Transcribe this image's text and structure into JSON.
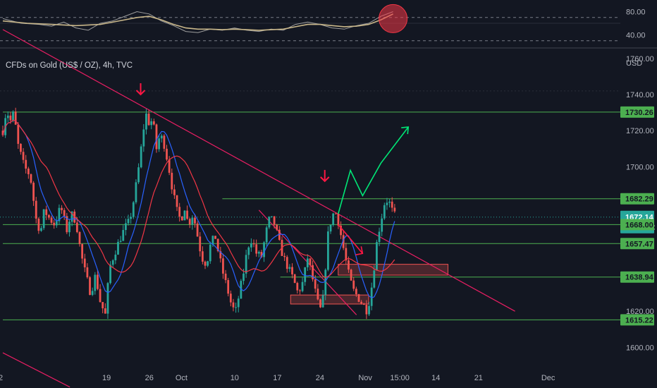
{
  "colors": {
    "background": "#131722",
    "up_candle": "#26a69a",
    "down_candle": "#ef5350",
    "blue_ma": "#2962ff",
    "red_ma": "#f23645",
    "support_line": "#4caf50",
    "trendline": "#e91e63",
    "forecast_up": "#00e676",
    "forecast_down": "#ff1744",
    "rsi_line": "#c9b78a",
    "rsi_alt": "#9e9e9e",
    "arrow": "#ff1744",
    "grid": "#2a2e39"
  },
  "chart_data": [
    {
      "type": "line",
      "title": "CFDs on Gold (US$ / OZ), 4h, TVC",
      "series_name": "CFDs on Gold (US$ / OZ), 4h, TVC",
      "price_unit": "USD",
      "ylim": [
        1590,
        1765
      ],
      "y_ticks": [
        1600.0,
        1620.0,
        1640.0,
        1660.0,
        1680.0,
        1700.0,
        1720.0,
        1740.0,
        1760.0
      ],
      "y_tick_labels": [
        "1600.00",
        "1620.00",
        "",
        "",
        "",
        "1700.00",
        "1720.00",
        "1740.00",
        "1760.00"
      ],
      "x_ticks": [
        {
          "label": "2",
          "pos": 0
        },
        {
          "label": "19",
          "pos": 17
        },
        {
          "label": "26",
          "pos": 24
        },
        {
          "label": "Oct",
          "pos": 29
        },
        {
          "label": "10",
          "pos": 38
        },
        {
          "label": "17",
          "pos": 45
        },
        {
          "label": "24",
          "pos": 52
        },
        {
          "label": "Nov",
          "pos": 59
        },
        {
          "label": "15:00",
          "pos": 64.2
        },
        {
          "label": "14",
          "pos": 71
        },
        {
          "label": "21",
          "pos": 78
        },
        {
          "label": "Dec",
          "pos": 89
        }
      ],
      "price_path": [
        [
          0,
          1720
        ],
        [
          0.6,
          1732
        ],
        [
          1.2,
          1725
        ],
        [
          1.8,
          1730
        ],
        [
          2.5,
          1712
        ],
        [
          3.5,
          1700
        ],
        [
          4.5,
          1695
        ],
        [
          5.5,
          1670
        ],
        [
          6.2,
          1664
        ],
        [
          6.8,
          1676
        ],
        [
          7.5,
          1672
        ],
        [
          8.5,
          1668
        ],
        [
          9.5,
          1678
        ],
        [
          10.5,
          1665
        ],
        [
          11.2,
          1674
        ],
        [
          12.0,
          1670
        ],
        [
          12.8,
          1652
        ],
        [
          13.6,
          1640
        ],
        [
          14.4,
          1630
        ],
        [
          15.2,
          1640
        ],
        [
          16.0,
          1625
        ],
        [
          16.8,
          1618
        ],
        [
          17.5,
          1644
        ],
        [
          18.3,
          1652
        ],
        [
          19.2,
          1660
        ],
        [
          20.0,
          1666
        ],
        [
          20.8,
          1670
        ],
        [
          21.6,
          1684
        ],
        [
          22.3,
          1700
        ],
        [
          22.9,
          1716
        ],
        [
          23.4,
          1730
        ],
        [
          24.0,
          1724
        ],
        [
          24.6,
          1726
        ],
        [
          25.2,
          1710
        ],
        [
          25.8,
          1718
        ],
        [
          26.5,
          1712
        ],
        [
          27.2,
          1700
        ],
        [
          27.8,
          1688
        ],
        [
          28.5,
          1676
        ],
        [
          29.2,
          1670
        ],
        [
          29.8,
          1678
        ],
        [
          30.4,
          1668
        ],
        [
          31.2,
          1674
        ],
        [
          31.8,
          1664
        ],
        [
          32.6,
          1650
        ],
        [
          33.4,
          1646
        ],
        [
          34.0,
          1656
        ],
        [
          34.8,
          1662
        ],
        [
          35.5,
          1650
        ],
        [
          36.2,
          1640
        ],
        [
          37.0,
          1630
        ],
        [
          37.6,
          1622
        ],
        [
          38.2,
          1620
        ],
        [
          38.8,
          1630
        ],
        [
          39.5,
          1642
        ],
        [
          40.2,
          1656
        ],
        [
          40.8,
          1660
        ],
        [
          41.6,
          1652
        ],
        [
          42.4,
          1650
        ],
        [
          43.2,
          1664
        ],
        [
          43.8,
          1672
        ],
        [
          44.6,
          1668
        ],
        [
          45.3,
          1658
        ],
        [
          46.0,
          1650
        ],
        [
          46.8,
          1644
        ],
        [
          47.6,
          1638
        ],
        [
          48.4,
          1630
        ],
        [
          49.2,
          1636
        ],
        [
          50.0,
          1650
        ],
        [
          50.8,
          1638
        ],
        [
          51.4,
          1628
        ],
        [
          52.0,
          1620
        ],
        [
          52.6,
          1628
        ],
        [
          53.2,
          1660
        ],
        [
          53.8,
          1670
        ],
        [
          54.4,
          1676
        ],
        [
          55.0,
          1670
        ],
        [
          55.8,
          1656
        ],
        [
          56.6,
          1642
        ],
        [
          57.4,
          1632
        ],
        [
          58.2,
          1628
        ],
        [
          59.0,
          1624
        ],
        [
          59.8,
          1620
        ],
        [
          60.6,
          1636
        ],
        [
          61.4,
          1660
        ],
        [
          62.0,
          1670
        ],
        [
          62.6,
          1680
        ],
        [
          63.2,
          1682
        ],
        [
          63.8,
          1676
        ],
        [
          64.4,
          1672
        ]
      ],
      "horizontal_levels": [
        1730.26,
        1682.29,
        1668.0,
        1657.47,
        1638.94,
        1615.22
      ],
      "current_price": 1672.14,
      "countdown": "02:23:02",
      "level_tags": [
        {
          "price": 1730.26,
          "label": "1730.26",
          "style": "green"
        },
        {
          "price": 1682.29,
          "label": "1682.29",
          "style": "green"
        },
        {
          "price": 1672.14,
          "label": "1672.14",
          "style": "current"
        },
        {
          "price": 1668.0,
          "label": "1668.00",
          "style": "green"
        },
        {
          "price": 1657.47,
          "label": "1657.47",
          "style": "green"
        },
        {
          "price": 1638.94,
          "label": "1638.94",
          "style": "green"
        },
        {
          "price": 1615.22,
          "label": "1615.22",
          "style": "green"
        }
      ],
      "trendline_main": [
        [
          0,
          1776
        ],
        [
          84,
          1620
        ]
      ],
      "trendline_lower": [
        [
          0,
          1597
        ],
        [
          11,
          1578
        ]
      ],
      "wedge_top": [
        [
          42,
          1676
        ],
        [
          58,
          1618
        ]
      ],
      "forecast_up": [
        [
          55,
          1674
        ],
        [
          57,
          1698
        ],
        [
          59,
          1684
        ],
        [
          62,
          1702
        ],
        [
          66.5,
          1722
        ]
      ],
      "forecast_down": [
        [
          55,
          1668
        ],
        [
          57,
          1660
        ],
        [
          59,
          1652
        ]
      ],
      "zones": [
        {
          "x0": 55,
          "x1": 73,
          "y0": 1640,
          "y1": 1646
        },
        {
          "x0": 47.2,
          "x1": 60,
          "y0": 1624,
          "y1": 1629
        }
      ],
      "markers": [
        {
          "x": 22.6,
          "price": 1740,
          "type": "arrow-down"
        },
        {
          "x": 52.8,
          "price": 1692,
          "type": "arrow-down"
        }
      ]
    },
    {
      "type": "line",
      "title": "RSI",
      "ylim": [
        20,
        100
      ],
      "y_ticks": [
        40,
        80
      ],
      "y_tick_labels": [
        "40.00",
        "80.00"
      ],
      "bands": [
        30,
        70
      ],
      "rsi_path": [
        [
          0,
          68
        ],
        [
          3,
          60
        ],
        [
          6,
          58
        ],
        [
          8,
          55
        ],
        [
          10,
          62
        ],
        [
          12,
          52
        ],
        [
          14,
          48
        ],
        [
          16,
          60
        ],
        [
          18,
          64
        ],
        [
          20,
          72
        ],
        [
          22,
          80
        ],
        [
          24,
          76
        ],
        [
          26,
          64
        ],
        [
          28,
          56
        ],
        [
          30,
          46
        ],
        [
          32,
          44
        ],
        [
          34,
          50
        ],
        [
          36,
          48
        ],
        [
          38,
          52
        ],
        [
          40,
          48
        ],
        [
          42,
          46
        ],
        [
          44,
          50
        ],
        [
          46,
          48
        ],
        [
          48,
          58
        ],
        [
          50,
          62
        ],
        [
          52,
          58
        ],
        [
          54,
          52
        ],
        [
          56,
          50
        ],
        [
          58,
          56
        ],
        [
          60,
          60
        ],
        [
          62,
          72
        ],
        [
          64,
          80
        ]
      ],
      "rsi_ma_path": [
        [
          0,
          64
        ],
        [
          4,
          60
        ],
        [
          8,
          58
        ],
        [
          12,
          56
        ],
        [
          16,
          58
        ],
        [
          20,
          66
        ],
        [
          22,
          70
        ],
        [
          24,
          72
        ],
        [
          26,
          66
        ],
        [
          28,
          58
        ],
        [
          30,
          52
        ],
        [
          32,
          50
        ],
        [
          34,
          50
        ],
        [
          36,
          49
        ],
        [
          38,
          50
        ],
        [
          40,
          49
        ],
        [
          42,
          48
        ],
        [
          44,
          49
        ],
        [
          46,
          50
        ],
        [
          48,
          54
        ],
        [
          50,
          58
        ],
        [
          52,
          58
        ],
        [
          54,
          56
        ],
        [
          56,
          54
        ],
        [
          58,
          55
        ],
        [
          60,
          58
        ],
        [
          62,
          66
        ],
        [
          64,
          76
        ]
      ],
      "highlight_circle": {
        "x": 64,
        "value": 68
      }
    }
  ]
}
